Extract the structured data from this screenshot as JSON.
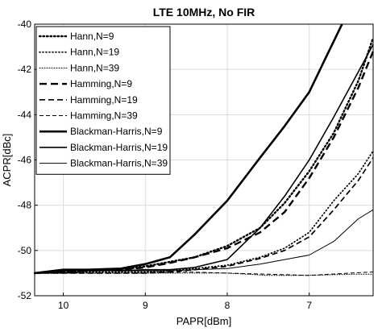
{
  "chart_data": {
    "type": "line",
    "title": "LTE 10MHz, No FIR",
    "xlabel": "PAPR[dBm]",
    "ylabel": "ACPR[dBc]",
    "x_reversed": true,
    "xlim": [
      10.35,
      6.22
    ],
    "ylim": [
      -52,
      -40
    ],
    "xticks": [
      10,
      9,
      8,
      7
    ],
    "xtick_labels": [
      "10",
      "9",
      "8",
      "7"
    ],
    "yticks": [
      -52,
      -50,
      -48,
      -46,
      -44,
      -42,
      -40
    ],
    "ytick_labels": [
      "-52",
      "-50",
      "-48",
      "-46",
      "-44",
      "-42",
      "-40"
    ],
    "grid": true,
    "legend_position": "top-left",
    "series": [
      {
        "name": "Hann,N=9",
        "style": "dotted-bold",
        "x": [
          10.35,
          10,
          9.7,
          9.3,
          9,
          8.7,
          8.4,
          8.0,
          7.6,
          7.3,
          7.0,
          6.7,
          6.4,
          6.22
        ],
        "y": [
          -51.0,
          -50.95,
          -50.9,
          -50.85,
          -50.7,
          -50.5,
          -50.3,
          -49.8,
          -49.0,
          -47.9,
          -46.5,
          -44.8,
          -42.5,
          -40.6
        ]
      },
      {
        "name": "Hann,N=19",
        "style": "dotted",
        "x": [
          10.35,
          10,
          9.7,
          9.3,
          9,
          8.7,
          8.4,
          8.0,
          7.6,
          7.3,
          7.0,
          6.7,
          6.4,
          6.22
        ],
        "y": [
          -51.0,
          -51.0,
          -50.95,
          -50.95,
          -50.95,
          -50.9,
          -50.8,
          -50.65,
          -50.3,
          -49.9,
          -49.2,
          -47.8,
          -46.6,
          -45.6
        ]
      },
      {
        "name": "Hann,N=39",
        "style": "dotted-thin",
        "x": [
          10.35,
          10,
          9.5,
          9,
          8.5,
          8,
          7.5,
          7,
          6.5,
          6.22
        ],
        "y": [
          -51.0,
          -51.0,
          -51.0,
          -51.0,
          -51.0,
          -51.0,
          -51.1,
          -51.1,
          -51.05,
          -51.05
        ]
      },
      {
        "name": "Hamming,N=9",
        "style": "dashed-bold",
        "x": [
          10.35,
          10,
          9.7,
          9.3,
          9,
          8.7,
          8.4,
          8.0,
          7.6,
          7.3,
          7.0,
          6.7,
          6.4,
          6.22
        ],
        "y": [
          -51.0,
          -50.95,
          -50.9,
          -50.85,
          -50.75,
          -50.55,
          -50.3,
          -49.9,
          -49.2,
          -48.3,
          -46.8,
          -45.0,
          -42.8,
          -41.2
        ]
      },
      {
        "name": "Hamming,N=19",
        "style": "dashed",
        "x": [
          10.35,
          10,
          9.7,
          9.3,
          9,
          8.7,
          8.4,
          8.0,
          7.6,
          7.3,
          7.0,
          6.7,
          6.4,
          6.22
        ],
        "y": [
          -51.0,
          -51.0,
          -51.0,
          -51.0,
          -51.0,
          -50.95,
          -50.85,
          -50.7,
          -50.35,
          -50.0,
          -49.4,
          -48.2,
          -46.9,
          -45.9
        ]
      },
      {
        "name": "Hamming,N=39",
        "style": "dashed-thin",
        "x": [
          10.35,
          10,
          9.5,
          9,
          8.5,
          8,
          7.5,
          7,
          6.5,
          6.22
        ],
        "y": [
          -51.0,
          -51.0,
          -51.0,
          -51.0,
          -50.95,
          -51.0,
          -51.05,
          -51.1,
          -51.0,
          -50.95
        ]
      },
      {
        "name": "Blackman-Harris,N=9",
        "style": "solid-bold",
        "x": [
          10.35,
          10,
          9.7,
          9.3,
          9,
          8.7,
          8.4,
          8.0,
          7.6,
          7.3,
          7.0,
          6.8,
          6.6
        ],
        "y": [
          -51.0,
          -50.85,
          -50.85,
          -50.8,
          -50.6,
          -50.3,
          -49.3,
          -47.8,
          -45.9,
          -44.5,
          -43.0,
          -41.5,
          -40.0
        ]
      },
      {
        "name": "Blackman-Harris,N=19",
        "style": "solid",
        "x": [
          10.35,
          10,
          9.7,
          9.3,
          9,
          8.7,
          8.4,
          8.0,
          7.6,
          7.3,
          7.0,
          6.7,
          6.4,
          6.22
        ],
        "y": [
          -51.0,
          -50.9,
          -50.85,
          -50.9,
          -50.85,
          -50.85,
          -50.75,
          -50.4,
          -49.0,
          -47.6,
          -46.0,
          -44.1,
          -42.1,
          -40.9
        ]
      },
      {
        "name": "Blackman-Harris,N=39",
        "style": "solid-thin",
        "x": [
          10.35,
          10,
          9.7,
          9.3,
          9,
          8.7,
          8.4,
          8.0,
          7.6,
          7.3,
          7.0,
          6.7,
          6.4,
          6.22
        ],
        "y": [
          -51.0,
          -51.0,
          -50.9,
          -50.9,
          -50.9,
          -50.9,
          -50.85,
          -50.8,
          -50.6,
          -50.4,
          -50.2,
          -49.6,
          -48.6,
          -48.2
        ]
      }
    ]
  }
}
